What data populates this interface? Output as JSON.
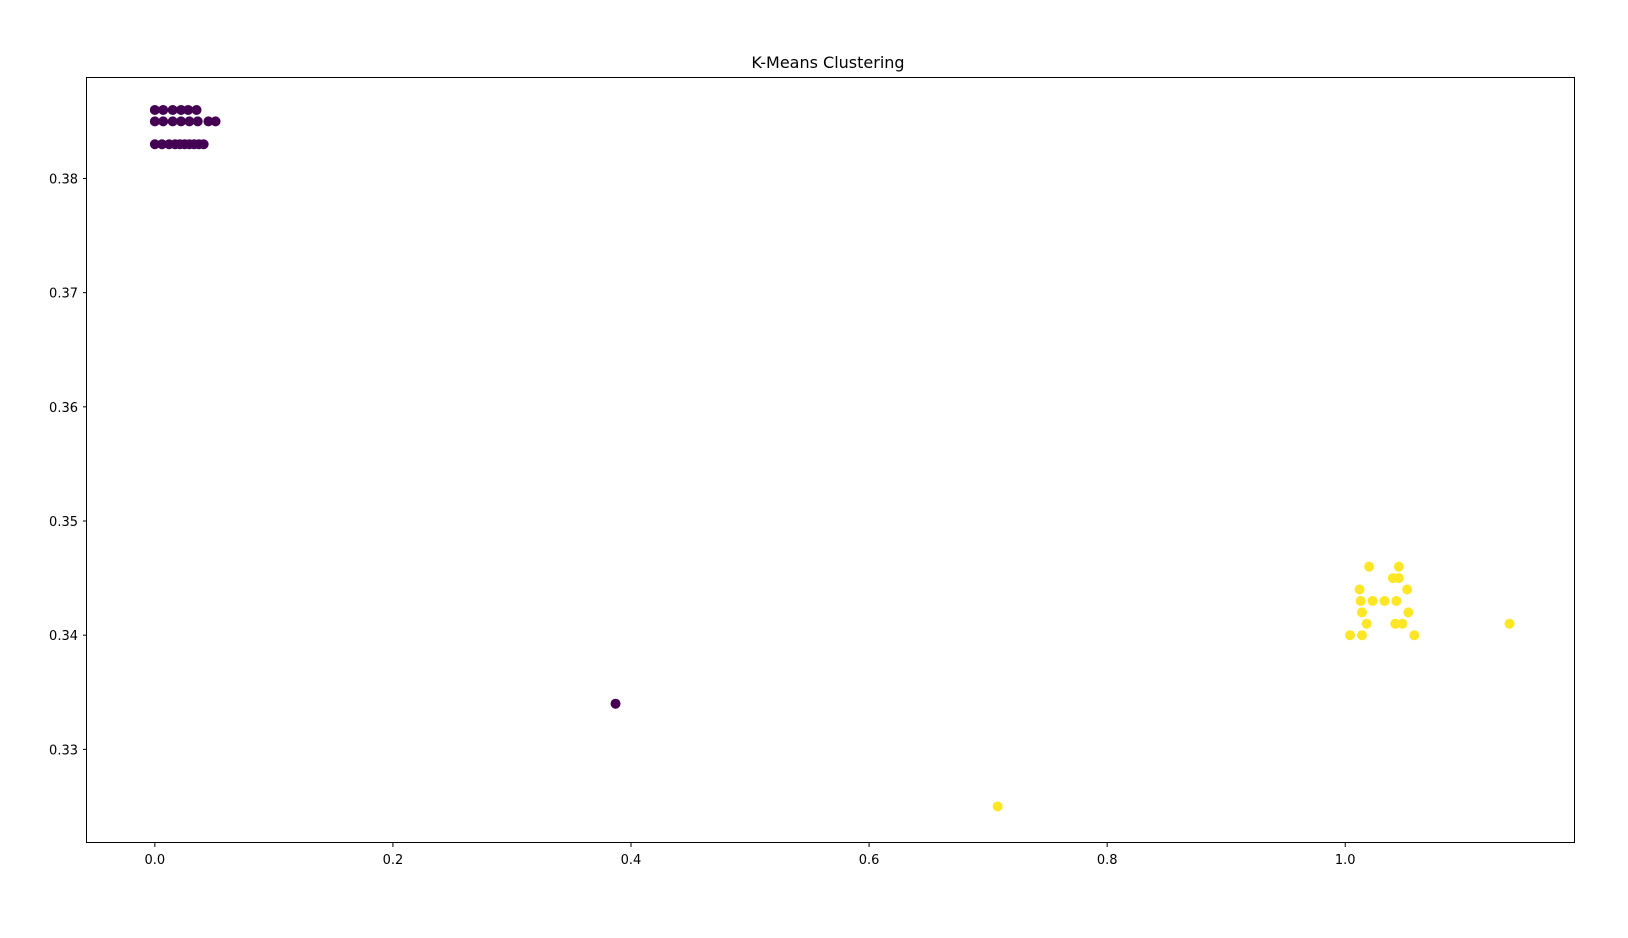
{
  "chart_data": {
    "type": "scatter",
    "title": "K-Means Clustering",
    "xlabel": "",
    "ylabel": "",
    "xlim": [
      -0.057,
      1.193
    ],
    "ylim": [
      0.3218,
      0.3888
    ],
    "x_ticks": [
      0.0,
      0.2,
      0.4,
      0.6,
      0.8,
      1.0
    ],
    "x_tick_labels": [
      "0.0",
      "0.2",
      "0.4",
      "0.6",
      "0.8",
      "1.0"
    ],
    "y_ticks": [
      0.33,
      0.34,
      0.35,
      0.36,
      0.37,
      0.38
    ],
    "y_tick_labels": [
      "0.33",
      "0.34",
      "0.35",
      "0.36",
      "0.37",
      "0.38"
    ],
    "grid": false,
    "legend": "none",
    "colors": {
      "cluster_0": "#440154",
      "cluster_1": "#fde725"
    },
    "series": [
      {
        "cluster": 0,
        "color": "#440154",
        "points": [
          [
            0.0,
            0.386
          ],
          [
            0.007,
            0.386
          ],
          [
            0.015,
            0.386
          ],
          [
            0.022,
            0.386
          ],
          [
            0.028,
            0.386
          ],
          [
            0.035,
            0.386
          ],
          [
            0.0,
            0.385
          ],
          [
            0.007,
            0.385
          ],
          [
            0.015,
            0.385
          ],
          [
            0.022,
            0.385
          ],
          [
            0.029,
            0.385
          ],
          [
            0.036,
            0.385
          ],
          [
            0.045,
            0.385
          ],
          [
            0.051,
            0.385
          ],
          [
            0.0,
            0.383
          ],
          [
            0.006,
            0.383
          ],
          [
            0.012,
            0.383
          ],
          [
            0.017,
            0.383
          ],
          [
            0.021,
            0.383
          ],
          [
            0.025,
            0.383
          ],
          [
            0.029,
            0.383
          ],
          [
            0.033,
            0.383
          ],
          [
            0.037,
            0.383
          ],
          [
            0.041,
            0.383
          ],
          [
            0.387,
            0.334
          ]
        ]
      },
      {
        "cluster": 1,
        "color": "#fde725",
        "points": [
          [
            1.02,
            0.346
          ],
          [
            1.045,
            0.346
          ],
          [
            1.04,
            0.345
          ],
          [
            1.045,
            0.345
          ],
          [
            1.012,
            0.344
          ],
          [
            1.052,
            0.344
          ],
          [
            1.013,
            0.343
          ],
          [
            1.023,
            0.343
          ],
          [
            1.033,
            0.343
          ],
          [
            1.043,
            0.343
          ],
          [
            1.014,
            0.342
          ],
          [
            1.053,
            0.342
          ],
          [
            1.018,
            0.341
          ],
          [
            1.042,
            0.341
          ],
          [
            1.048,
            0.341
          ],
          [
            1.138,
            0.341
          ],
          [
            1.004,
            0.34
          ],
          [
            1.014,
            0.34
          ],
          [
            1.058,
            0.34
          ],
          [
            0.708,
            0.325
          ]
        ]
      }
    ]
  }
}
